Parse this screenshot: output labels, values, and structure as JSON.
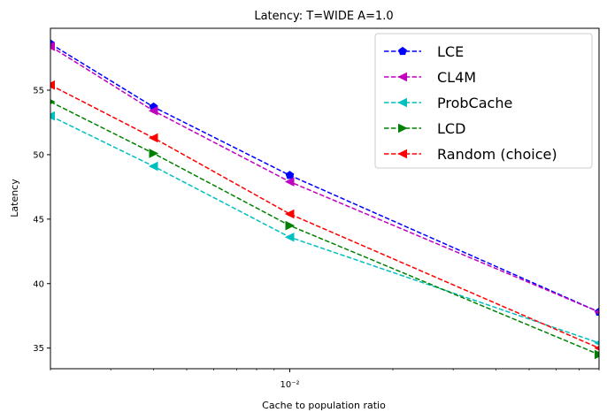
{
  "chart_data": {
    "type": "line",
    "title": "Latency: T=WIDE A=1.0",
    "xlabel": "Cache to population ratio",
    "ylabel": "Latency",
    "xscale": "log",
    "xlim": [
      0.002,
      0.08
    ],
    "ylim": [
      33.4,
      59.8
    ],
    "x": [
      0.002,
      0.004,
      0.01,
      0.08
    ],
    "x_tick_labels": [
      {
        "value": 0.01,
        "label": "10⁻²"
      }
    ],
    "y_ticks": [
      35,
      40,
      45,
      50,
      55
    ],
    "grid": false,
    "legend_position": "top-right",
    "series": [
      {
        "name": "LCE",
        "color": "#0000ff",
        "marker": "pentagon",
        "values": [
          58.6,
          53.7,
          48.4,
          37.8
        ]
      },
      {
        "name": "CL4M",
        "color": "#bf00bf",
        "marker": "triangle-left",
        "values": [
          58.4,
          53.4,
          47.9,
          37.8
        ]
      },
      {
        "name": "ProbCache",
        "color": "#00bfbf",
        "marker": "triangle-left",
        "values": [
          53.0,
          49.1,
          43.6,
          35.4
        ]
      },
      {
        "name": "LCD",
        "color": "#008000",
        "marker": "triangle-right",
        "values": [
          54.1,
          50.1,
          44.5,
          34.5
        ]
      },
      {
        "name": "Random (choice)",
        "color": "#ff0000",
        "marker": "triangle-left",
        "values": [
          55.4,
          51.3,
          45.4,
          35.0
        ]
      }
    ]
  }
}
